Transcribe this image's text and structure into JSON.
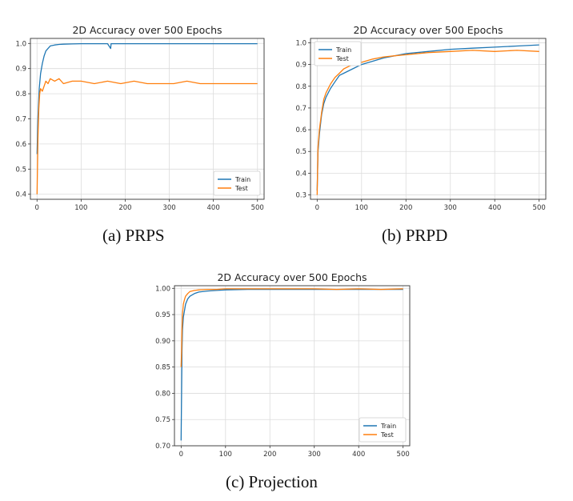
{
  "chart_data": [
    {
      "type": "line",
      "title": "2D Accuracy over 500 Epochs",
      "caption": "(a)  PRPS",
      "xlabel": "",
      "ylabel": "",
      "xlim": [
        -15,
        515
      ],
      "ylim": [
        0.38,
        1.02
      ],
      "xticks": [
        0,
        100,
        200,
        300,
        400,
        500
      ],
      "yticks": [
        0.4,
        0.5,
        0.6,
        0.7,
        0.8,
        0.9,
        1.0
      ],
      "ytick_labels": [
        "0.4",
        "0.5",
        "0.6",
        "0.7",
        "0.8",
        "0.9",
        "1.0"
      ],
      "grid": true,
      "legend": "lower-right",
      "series": [
        {
          "name": "Train",
          "color": "#1f77b4",
          "x": [
            0,
            2,
            5,
            8,
            12,
            16,
            20,
            25,
            30,
            40,
            50,
            60,
            80,
            100,
            130,
            160,
            167,
            168,
            170,
            200,
            250,
            300,
            350,
            400,
            450,
            500
          ],
          "values": [
            0.56,
            0.7,
            0.82,
            0.88,
            0.92,
            0.95,
            0.97,
            0.98,
            0.99,
            0.994,
            0.996,
            0.997,
            0.998,
            0.999,
            0.999,
            0.999,
            0.98,
            0.999,
            0.999,
            0.999,
            0.999,
            0.999,
            0.999,
            0.999,
            0.999,
            0.999
          ]
        },
        {
          "name": "Test",
          "color": "#ff7f0e",
          "x": [
            0,
            2,
            4,
            6,
            8,
            12,
            16,
            20,
            25,
            30,
            40,
            50,
            60,
            80,
            100,
            130,
            160,
            190,
            220,
            250,
            280,
            310,
            340,
            370,
            400,
            430,
            460,
            490,
            500
          ],
          "values": [
            0.4,
            0.62,
            0.74,
            0.8,
            0.82,
            0.81,
            0.83,
            0.85,
            0.84,
            0.86,
            0.85,
            0.86,
            0.84,
            0.85,
            0.85,
            0.84,
            0.85,
            0.84,
            0.85,
            0.84,
            0.84,
            0.84,
            0.85,
            0.84,
            0.84,
            0.84,
            0.84,
            0.84,
            0.84
          ]
        }
      ]
    },
    {
      "type": "line",
      "title": "2D Accuracy over 500 Epochs",
      "caption": "(b)  PRPD",
      "xlabel": "",
      "ylabel": "",
      "xlim": [
        -15,
        515
      ],
      "ylim": [
        0.28,
        1.02
      ],
      "xticks": [
        0,
        100,
        200,
        300,
        400,
        500
      ],
      "yticks": [
        0.3,
        0.4,
        0.5,
        0.6,
        0.7,
        0.8,
        0.9,
        1.0
      ],
      "ytick_labels": [
        "0.3",
        "0.4",
        "0.5",
        "0.6",
        "0.7",
        "0.8",
        "0.9",
        "1.0"
      ],
      "grid": true,
      "legend": "top-left",
      "series": [
        {
          "name": "Train",
          "color": "#1f77b4",
          "x": [
            0,
            2,
            5,
            10,
            15,
            20,
            30,
            40,
            50,
            60,
            80,
            100,
            125,
            150,
            175,
            200,
            250,
            300,
            350,
            400,
            450,
            500
          ],
          "values": [
            0.32,
            0.5,
            0.58,
            0.67,
            0.72,
            0.75,
            0.79,
            0.82,
            0.85,
            0.86,
            0.88,
            0.9,
            0.915,
            0.93,
            0.94,
            0.95,
            0.96,
            0.97,
            0.975,
            0.98,
            0.985,
            0.99
          ]
        },
        {
          "name": "Test",
          "color": "#ff7f0e",
          "x": [
            0,
            2,
            5,
            10,
            15,
            20,
            30,
            40,
            50,
            60,
            80,
            100,
            125,
            150,
            175,
            200,
            250,
            300,
            350,
            400,
            450,
            500
          ],
          "values": [
            0.3,
            0.52,
            0.6,
            0.68,
            0.74,
            0.77,
            0.81,
            0.84,
            0.86,
            0.88,
            0.9,
            0.91,
            0.925,
            0.935,
            0.94,
            0.945,
            0.955,
            0.96,
            0.965,
            0.96,
            0.965,
            0.96
          ]
        }
      ]
    },
    {
      "type": "line",
      "title": "2D Accuracy over 500 Epochs",
      "caption": "(c)  Projection",
      "xlabel": "",
      "ylabel": "",
      "xlim": [
        -15,
        515
      ],
      "ylim": [
        0.7,
        1.005
      ],
      "xticks": [
        0,
        100,
        200,
        300,
        400,
        500
      ],
      "yticks": [
        0.7,
        0.75,
        0.8,
        0.85,
        0.9,
        0.95,
        1.0
      ],
      "ytick_labels": [
        "0.70",
        "0.75",
        "0.80",
        "0.85",
        "0.90",
        "0.95",
        "1.00"
      ],
      "grid": true,
      "legend": "lower-right",
      "series": [
        {
          "name": "Train",
          "color": "#1f77b4",
          "x": [
            0,
            1,
            2,
            3,
            5,
            8,
            10,
            15,
            20,
            30,
            40,
            60,
            80,
            100,
            150,
            200,
            250,
            300,
            350,
            400,
            450,
            500
          ],
          "values": [
            0.71,
            0.8,
            0.88,
            0.92,
            0.945,
            0.96,
            0.97,
            0.98,
            0.985,
            0.99,
            0.993,
            0.995,
            0.996,
            0.997,
            0.998,
            0.998,
            0.998,
            0.998,
            0.998,
            0.998,
            0.998,
            0.998
          ]
        },
        {
          "name": "Test",
          "color": "#ff7f0e",
          "x": [
            0,
            1,
            2,
            3,
            5,
            8,
            10,
            15,
            20,
            30,
            40,
            60,
            80,
            100,
            150,
            200,
            250,
            300,
            350,
            400,
            450,
            500
          ],
          "values": [
            0.85,
            0.88,
            0.92,
            0.95,
            0.97,
            0.98,
            0.985,
            0.99,
            0.994,
            0.996,
            0.997,
            0.998,
            0.998,
            0.999,
            0.999,
            0.999,
            0.999,
            0.999,
            0.998,
            0.999,
            0.998,
            0.999
          ]
        }
      ]
    }
  ]
}
